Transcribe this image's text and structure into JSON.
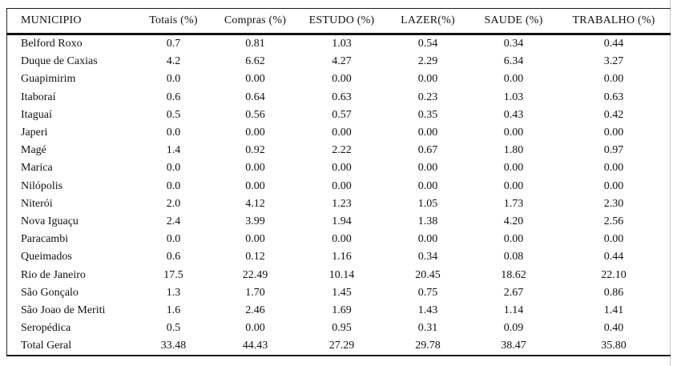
{
  "table": {
    "columns": [
      "MUNICIPIO",
      "Totais (%)",
      "Compras (%)",
      "ESTUDO (%)",
      "LAZER(%)",
      "SAUDE (%)",
      "TRABALHO (%)"
    ],
    "rows": [
      [
        "Belford Roxo",
        "0.7",
        "0.81",
        "1.03",
        "0.54",
        "0.34",
        "0.44"
      ],
      [
        "Duque de Caxias",
        "4.2",
        "6.62",
        "4.27",
        "2.29",
        "6.34",
        "3.27"
      ],
      [
        "Guapimirim",
        "0.0",
        "0.00",
        "0.00",
        "0.00",
        "0.00",
        "0.00"
      ],
      [
        "Itaboraí",
        "0.6",
        "0.64",
        "0.63",
        "0.23",
        "1.03",
        "0.63"
      ],
      [
        "Itaguaí",
        "0.5",
        "0.56",
        "0.57",
        "0.35",
        "0.43",
        "0.42"
      ],
      [
        "Japeri",
        "0.0",
        "0.00",
        "0.00",
        "0.00",
        "0.00",
        "0.00"
      ],
      [
        "Magé",
        "1.4",
        "0.92",
        "2.22",
        "0.67",
        "1.80",
        "0.97"
      ],
      [
        "Marica",
        "0.0",
        "0.00",
        "0.00",
        "0.00",
        "0.00",
        "0.00"
      ],
      [
        "Nilópolis",
        "0.0",
        "0.00",
        "0.00",
        "0.00",
        "0.00",
        "0.00"
      ],
      [
        "Niterói",
        "2.0",
        "4.12",
        "1.23",
        "1.05",
        "1.73",
        "2.30"
      ],
      [
        "Nova Iguaçu",
        "2.4",
        "3.99",
        "1.94",
        "1.38",
        "4.20",
        "2.56"
      ],
      [
        "Paracambi",
        "0.0",
        "0.00",
        "0.00",
        "0.00",
        "0.00",
        "0.00"
      ],
      [
        "Queimados",
        "0.6",
        "0.12",
        "1.16",
        "0.34",
        "0.08",
        "0.44"
      ],
      [
        "Rio de Janeiro",
        "17.5",
        "22.49",
        "10.14",
        "20.45",
        "18.62",
        "22.10"
      ],
      [
        "São Gonçalo",
        "1.3",
        "1.70",
        "1.45",
        "0.75",
        "2.67",
        "0.86"
      ],
      [
        "São Joao de Meriti",
        "1.6",
        "2.46",
        "1.69",
        "1.43",
        "1.14",
        "1.41"
      ],
      [
        "Seropédica",
        "0.5",
        "0.00",
        "0.95",
        "0.31",
        "0.09",
        "0.40"
      ],
      [
        "Total Geral",
        "33.48",
        "44.43",
        "27.29",
        "29.78",
        "38.47",
        "35.80"
      ]
    ]
  }
}
